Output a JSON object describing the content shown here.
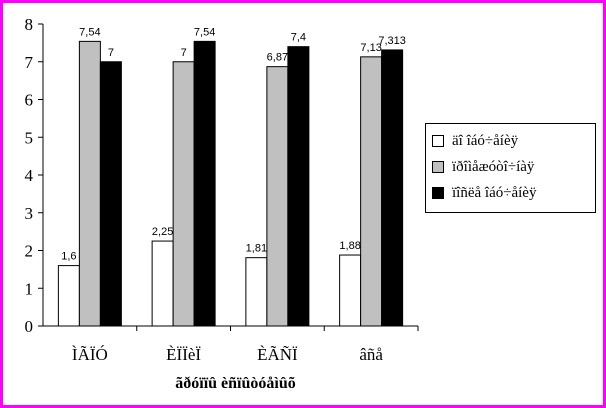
{
  "chart_data": {
    "type": "bar",
    "title": "",
    "xlabel": "ãðóïïû èñïûòóåìûõ",
    "ylabel": "",
    "ylim": [
      0,
      8
    ],
    "yticks": [
      "0",
      "1",
      "2",
      "3",
      "4",
      "5",
      "6",
      "7",
      "8"
    ],
    "categories": [
      "ÌÃÏÓ",
      "ÈÏÏèÏ",
      "ÈÃÑÏ",
      "âñå"
    ],
    "series": [
      {
        "name": "äî îáó÷åíèÿ",
        "color": "#ffffff",
        "values": [
          1.6,
          2.25,
          1.81,
          1.88
        ],
        "labels": [
          "1,6",
          "2,25",
          "1,81",
          "1,88"
        ]
      },
      {
        "name": "ïðîìåæóòî÷íàÿ",
        "color": "#c0c0c0",
        "values": [
          7.54,
          7,
          6.87,
          7.13
        ],
        "labels": [
          "7,54",
          "7",
          "6,87",
          "7,13"
        ]
      },
      {
        "name": "ïîñëå îáó÷åíèÿ",
        "color": "#000000",
        "values": [
          7,
          7.54,
          7.4,
          7.313
        ],
        "labels": [
          "7",
          "7,54",
          "7,4",
          "7,313"
        ]
      }
    ],
    "grid": false,
    "legend_position": "right"
  },
  "legend": {
    "items": [
      {
        "label": "äî îáó÷åíèÿ",
        "color": "#ffffff"
      },
      {
        "label": "ïðîìåæóòî÷íàÿ",
        "color": "#c0c0c0"
      },
      {
        "label": "ïîñëå îáó÷åíèÿ",
        "color": "#000000"
      }
    ]
  },
  "colors": {
    "frame": "#ff00ff",
    "axis": "#000000"
  }
}
